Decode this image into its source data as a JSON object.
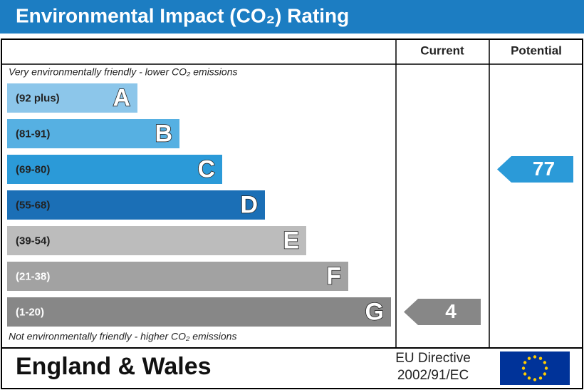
{
  "title": "Environmental Impact (CO₂) Rating",
  "headers": {
    "current": "Current",
    "potential": "Potential"
  },
  "top_note": "Very environmentally friendly - lower CO₂ emissions",
  "bottom_note": "Not environmentally friendly - higher CO₂ emissions",
  "bands": [
    {
      "range": "(92 plus)",
      "letter": "A",
      "color": "#8cc6ea",
      "text_color": "#222222"
    },
    {
      "range": "(81-91)",
      "letter": "B",
      "color": "#56b0e2",
      "text_color": "#222222"
    },
    {
      "range": "(69-80)",
      "letter": "C",
      "color": "#2b9ad8",
      "text_color": "#222222"
    },
    {
      "range": "(55-68)",
      "letter": "D",
      "color": "#1b6fb6",
      "text_color": "#222222"
    },
    {
      "range": "(39-54)",
      "letter": "E",
      "color": "#bcbcbc",
      "text_color": "#222222"
    },
    {
      "range": "(21-38)",
      "letter": "F",
      "color": "#a2a2a2",
      "text_color": "#ffffff"
    },
    {
      "range": "(1-20)",
      "letter": "G",
      "color": "#878787",
      "text_color": "#ffffff"
    }
  ],
  "current": 4,
  "potential": 77,
  "footer": {
    "region": "England & Wales",
    "directive": [
      "EU Directive",
      "2002/91/EC"
    ]
  }
}
